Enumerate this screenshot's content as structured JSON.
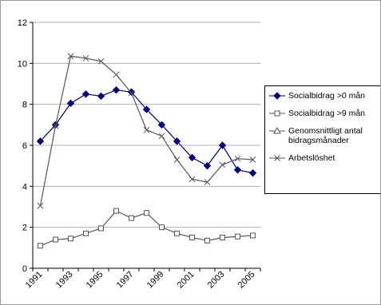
{
  "chart_data": {
    "type": "line",
    "categories": [
      "1991",
      null,
      "1993",
      null,
      "1995",
      null,
      "1997",
      null,
      "1999",
      null,
      "2001",
      null,
      "2003",
      null,
      "2005"
    ],
    "series": [
      {
        "name": "Socialbidrag >0 mån",
        "color": "#000080",
        "marker": "diamond",
        "values": [
          6.2,
          7.0,
          8.05,
          8.5,
          8.4,
          8.7,
          8.6,
          7.75,
          7.0,
          6.2,
          5.4,
          5.0,
          6.0,
          4.8,
          4.65
        ]
      },
      {
        "name": "Socialbidrag >9 mån",
        "color": "#555555",
        "marker": "square",
        "values": [
          1.1,
          1.4,
          1.45,
          1.7,
          1.95,
          2.8,
          2.45,
          2.7,
          2.0,
          1.7,
          1.5,
          1.35,
          1.5,
          1.55,
          1.6
        ]
      },
      {
        "name": "Genomsnittligt antal bidragsmånader",
        "color": "#555555",
        "marker": "triangle",
        "values": [
          null,
          null,
          null,
          null,
          null,
          null,
          null,
          null,
          null,
          null,
          null,
          null,
          null,
          null,
          null
        ]
      },
      {
        "name": "Arbetslöshet",
        "color": "#555555",
        "marker": "x",
        "values": [
          3.05,
          6.95,
          10.35,
          10.25,
          10.1,
          9.45,
          8.55,
          6.75,
          6.45,
          5.3,
          4.35,
          4.2,
          5.05,
          5.35,
          5.3
        ]
      }
    ],
    "ylim": [
      0,
      12
    ],
    "yticks": [
      0,
      2,
      4,
      6,
      8,
      10,
      12
    ],
    "grid": true
  }
}
